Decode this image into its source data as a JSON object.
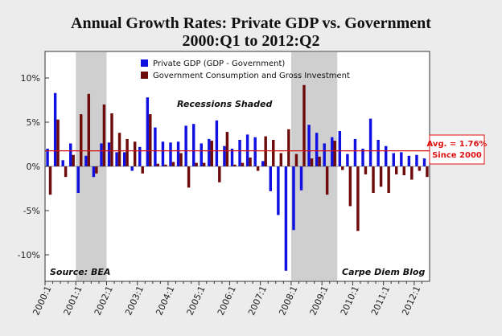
{
  "chart_data": {
    "type": "bar",
    "title_line1": "Annual Growth Rates: Private GDP vs. Government",
    "title_line2": "2000:Q1 to 2012:Q2",
    "ylim": [
      -13,
      13
    ],
    "y_ticks": [
      10,
      5,
      0,
      -5,
      -10
    ],
    "y_tick_labels": [
      "10%",
      "5%",
      "0%",
      "-5%",
      "-10%"
    ],
    "grid": false,
    "x_tick_labels": [
      "2000:1",
      "2001:1",
      "2002:1",
      "2003:1",
      "2004:1",
      "2005:1",
      "2006:1",
      "2007:1",
      "2008:1",
      "2009:1",
      "2010:1",
      "2011:1",
      "2012:1"
    ],
    "colors": {
      "private": "#1010e0",
      "government": "#6e0b0b",
      "average": "#d01010",
      "recession": "#cfcfcf"
    },
    "categories": [
      "2000:1",
      "2000:2",
      "2000:3",
      "2000:4",
      "2001:1",
      "2001:2",
      "2001:3",
      "2001:4",
      "2002:1",
      "2002:2",
      "2002:3",
      "2002:4",
      "2003:1",
      "2003:2",
      "2003:3",
      "2003:4",
      "2004:1",
      "2004:2",
      "2004:3",
      "2004:4",
      "2005:1",
      "2005:2",
      "2005:3",
      "2005:4",
      "2006:1",
      "2006:2",
      "2006:3",
      "2006:4",
      "2007:1",
      "2007:2",
      "2007:3",
      "2007:4",
      "2008:1",
      "2008:2",
      "2008:3",
      "2008:4",
      "2009:1",
      "2009:2",
      "2009:3",
      "2009:4",
      "2010:1",
      "2010:2",
      "2010:3",
      "2010:4",
      "2011:1",
      "2011:2",
      "2011:3",
      "2011:4",
      "2012:1",
      "2012:2"
    ],
    "series": [
      {
        "name": "Private GDP (GDP - Government)",
        "values": [
          2.0,
          8.3,
          0.7,
          2.6,
          -3.0,
          1.2,
          -1.2,
          2.6,
          2.7,
          1.6,
          1.6,
          -0.5,
          2.2,
          7.8,
          4.4,
          2.8,
          2.7,
          2.8,
          4.6,
          4.8,
          2.6,
          3.1,
          5.2,
          2.3,
          2.0,
          3.0,
          3.6,
          3.3,
          0.6,
          -2.8,
          -5.5,
          -11.8,
          -7.2,
          -2.7,
          4.7,
          3.8,
          2.6,
          3.3,
          4.0,
          1.4,
          3.1,
          2.0,
          5.4,
          3.0,
          2.3,
          1.5,
          1.6,
          1.2,
          1.3,
          0.9
        ]
      },
      {
        "name": "Government Consumption and Gross Investment",
        "values": [
          -3.2,
          5.3,
          -1.2,
          1.3,
          5.9,
          8.2,
          -0.8,
          7.0,
          6.0,
          3.8,
          3.1,
          2.8,
          -0.8,
          5.9,
          0.3,
          0.2,
          0.5,
          1.5,
          -2.4,
          0.4,
          0.4,
          2.9,
          -1.8,
          3.9,
          0.2,
          0.4,
          1.0,
          -0.5,
          3.4,
          3.0,
          1.5,
          4.2,
          1.4,
          9.2,
          0.9,
          1.1,
          -3.2,
          2.9,
          -0.4,
          -4.5,
          -7.3,
          -0.9,
          -3.0,
          -2.3,
          -3.0,
          -0.9,
          -1.0,
          -1.5,
          -0.5,
          -1.2
        ]
      }
    ],
    "recessions": [
      [
        "2001:1",
        "2001:4"
      ],
      [
        "2008:1",
        "2009:2"
      ]
    ],
    "average": {
      "value": 1.76,
      "label_line1": "Avg. = 1.76%",
      "label_line2": "Since 2000"
    },
    "legend_placement": "top-center",
    "annotations": {
      "recessions": "Recessions Shaded",
      "source": "Source: BEA",
      "blog": "Carpe Diem Blog"
    }
  }
}
